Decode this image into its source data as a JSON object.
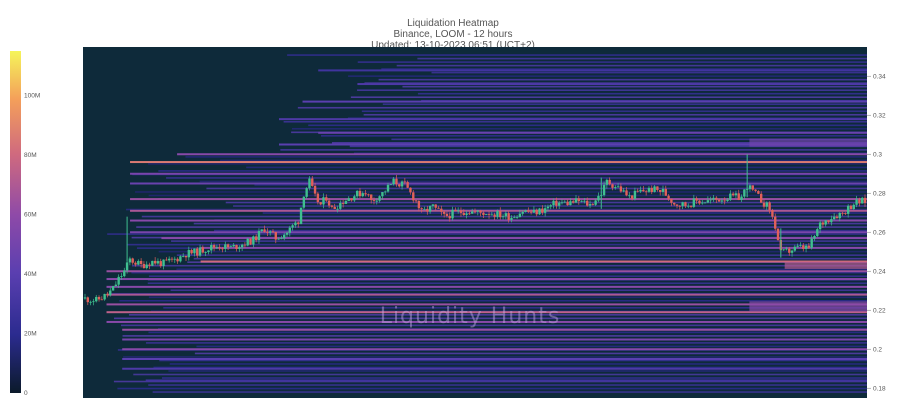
{
  "header": {
    "title": "Liquidation Heatmap",
    "subtitle": "Binance, LOOM - 12 hours",
    "updated": "Updated: 13-10-2023 06:51 (UCT+2)"
  },
  "watermark": "Liquidity Hunts",
  "colors": {
    "background": "#0e2a3a",
    "candle_up": "#3fbf8f",
    "candle_down": "#e0605a",
    "scale": [
      "#0b1a2a",
      "#2b2b8f",
      "#5a3fb0",
      "#8e4aa8",
      "#d06a7e",
      "#f4a05a",
      "#f5f55a"
    ]
  },
  "chart_data": {
    "type": "heatmap",
    "title": "Liquidation Heatmap",
    "subtitle": "Binance, LOOM - 12 hours",
    "y_axis": {
      "position": "right",
      "range": [
        0.175,
        0.355
      ],
      "ticks": [
        0.18,
        0.2,
        0.22,
        0.24,
        0.26,
        0.28,
        0.3,
        0.32,
        0.34
      ],
      "tick_labels": [
        "0.18",
        "0.2",
        "0.22",
        "0.24",
        "0.26",
        "0.28",
        "0.3",
        "0.32",
        "0.34"
      ]
    },
    "colorbar": {
      "range": [
        0,
        115000000
      ],
      "ticks": [
        0,
        20000000,
        40000000,
        60000000,
        80000000,
        100000000
      ],
      "tick_labels": [
        "0",
        "20M",
        "40M",
        "60M",
        "80M",
        "100M"
      ]
    },
    "price_path": [
      [
        0,
        0.226
      ],
      [
        2,
        0.225
      ],
      [
        4,
        0.228
      ],
      [
        5,
        0.231
      ],
      [
        6,
        0.236
      ],
      [
        7,
        0.24
      ],
      [
        8,
        0.246
      ],
      [
        10,
        0.243
      ],
      [
        12,
        0.245
      ],
      [
        14,
        0.244
      ],
      [
        16,
        0.246
      ],
      [
        18,
        0.249
      ],
      [
        20,
        0.25
      ],
      [
        22,
        0.252
      ],
      [
        24,
        0.253
      ],
      [
        26,
        0.252
      ],
      [
        28,
        0.254
      ],
      [
        30,
        0.256
      ],
      [
        32,
        0.262
      ],
      [
        34,
        0.257
      ],
      [
        36,
        0.26
      ],
      [
        38,
        0.266
      ],
      [
        39,
        0.28
      ],
      [
        40,
        0.286
      ],
      [
        41,
        0.278
      ],
      [
        42,
        0.274
      ],
      [
        43,
        0.278
      ],
      [
        44,
        0.272
      ],
      [
        46,
        0.276
      ],
      [
        48,
        0.279
      ],
      [
        50,
        0.281
      ],
      [
        51,
        0.276
      ],
      [
        53,
        0.28
      ],
      [
        55,
        0.286
      ],
      [
        57,
        0.284
      ],
      [
        58,
        0.28
      ],
      [
        59,
        0.276
      ],
      [
        60,
        0.27
      ],
      [
        62,
        0.273
      ],
      [
        64,
        0.268
      ],
      [
        66,
        0.27
      ],
      [
        68,
        0.271
      ],
      [
        70,
        0.27
      ],
      [
        72,
        0.27
      ],
      [
        74,
        0.269
      ],
      [
        76,
        0.268
      ],
      [
        78,
        0.271
      ],
      [
        80,
        0.27
      ],
      [
        82,
        0.272
      ],
      [
        84,
        0.275
      ],
      [
        86,
        0.275
      ],
      [
        88,
        0.276
      ],
      [
        90,
        0.274
      ],
      [
        92,
        0.28
      ],
      [
        93,
        0.286
      ],
      [
        95,
        0.283
      ],
      [
        97,
        0.278
      ],
      [
        99,
        0.281
      ],
      [
        101,
        0.282
      ],
      [
        103,
        0.281
      ],
      [
        105,
        0.275
      ],
      [
        107,
        0.274
      ],
      [
        109,
        0.276
      ],
      [
        111,
        0.276
      ],
      [
        113,
        0.277
      ],
      [
        115,
        0.278
      ],
      [
        117,
        0.278
      ],
      [
        118,
        0.284
      ],
      [
        119,
        0.281
      ],
      [
        120,
        0.278
      ],
      [
        122,
        0.272
      ],
      [
        123,
        0.263
      ],
      [
        124,
        0.249
      ],
      [
        125,
        0.25
      ],
      [
        127,
        0.252
      ],
      [
        129,
        0.252
      ],
      [
        130,
        0.258
      ],
      [
        131,
        0.264
      ],
      [
        133,
        0.268
      ],
      [
        135,
        0.27
      ],
      [
        137,
        0.275
      ],
      [
        139,
        0.276
      ]
    ],
    "price_path_x_range": [
      0,
      139
    ],
    "heat_bands": [
      {
        "price": 0.343,
        "intensity": 0.25,
        "start": 0.3
      },
      {
        "price": 0.336,
        "intensity": 0.3,
        "start": 0.35
      },
      {
        "price": 0.327,
        "intensity": 0.35,
        "start": 0.28
      },
      {
        "price": 0.318,
        "intensity": 0.3,
        "start": 0.25
      },
      {
        "price": 0.311,
        "intensity": 0.4,
        "start": 0.3
      },
      {
        "price": 0.305,
        "intensity": 0.35,
        "start": 0.25
      },
      {
        "price": 0.3,
        "intensity": 0.5,
        "start": 0.12
      },
      {
        "price": 0.296,
        "intensity": 0.75,
        "start": 0.06
      },
      {
        "price": 0.29,
        "intensity": 0.45,
        "start": 0.06
      },
      {
        "price": 0.285,
        "intensity": 0.4,
        "start": 0.06
      },
      {
        "price": 0.277,
        "intensity": 0.55,
        "start": 0.06
      },
      {
        "price": 0.271,
        "intensity": 0.6,
        "start": 0.06
      },
      {
        "price": 0.266,
        "intensity": 0.5,
        "start": 0.06
      },
      {
        "price": 0.26,
        "intensity": 0.45,
        "start": 0.06
      },
      {
        "price": 0.257,
        "intensity": 0.5,
        "start": 0.1
      },
      {
        "price": 0.252,
        "intensity": 0.5,
        "start": 0.15
      },
      {
        "price": 0.245,
        "intensity": 0.7,
        "start": 0.15
      },
      {
        "price": 0.24,
        "intensity": 0.55,
        "start": 0.03
      },
      {
        "price": 0.236,
        "intensity": 0.5,
        "start": 0.03
      },
      {
        "price": 0.232,
        "intensity": 0.5,
        "start": 0.03
      },
      {
        "price": 0.228,
        "intensity": 0.6,
        "start": 0.03
      },
      {
        "price": 0.223,
        "intensity": 0.55,
        "start": 0.03
      },
      {
        "price": 0.219,
        "intensity": 0.65,
        "start": 0.03
      },
      {
        "price": 0.214,
        "intensity": 0.5,
        "start": 0.03
      },
      {
        "price": 0.21,
        "intensity": 0.55,
        "start": 0.05
      },
      {
        "price": 0.205,
        "intensity": 0.45,
        "start": 0.05
      },
      {
        "price": 0.2,
        "intensity": 0.5,
        "start": 0.05
      },
      {
        "price": 0.195,
        "intensity": 0.35,
        "start": 0.05
      },
      {
        "price": 0.19,
        "intensity": 0.3,
        "start": 0.05
      },
      {
        "price": 0.184,
        "intensity": 0.25,
        "start": 0.08
      }
    ]
  }
}
